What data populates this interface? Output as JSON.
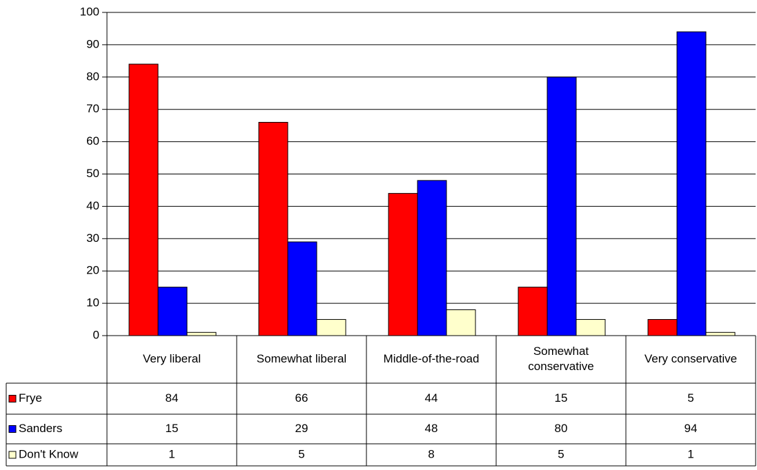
{
  "chart_data": {
    "type": "bar",
    "categories": [
      [
        "Very liberal"
      ],
      [
        "Somewhat liberal"
      ],
      [
        "Middle-of-the-road"
      ],
      [
        "Somewhat",
        "conservative"
      ],
      [
        "Very conservative"
      ]
    ],
    "series": [
      {
        "name": "Frye",
        "color": "#ff0000",
        "values": [
          84,
          66,
          44,
          15,
          5
        ]
      },
      {
        "name": "Sanders",
        "color": "#0000ff",
        "values": [
          15,
          29,
          48,
          80,
          94
        ]
      },
      {
        "name": "Don't Know",
        "color": "#ffffcc",
        "values": [
          1,
          5,
          8,
          5,
          1
        ]
      }
    ],
    "ylim": [
      0,
      100
    ],
    "yticks": [
      0,
      10,
      20,
      30,
      40,
      50,
      60,
      70,
      80,
      90,
      100
    ],
    "grid": true,
    "legend": "data-table"
  }
}
